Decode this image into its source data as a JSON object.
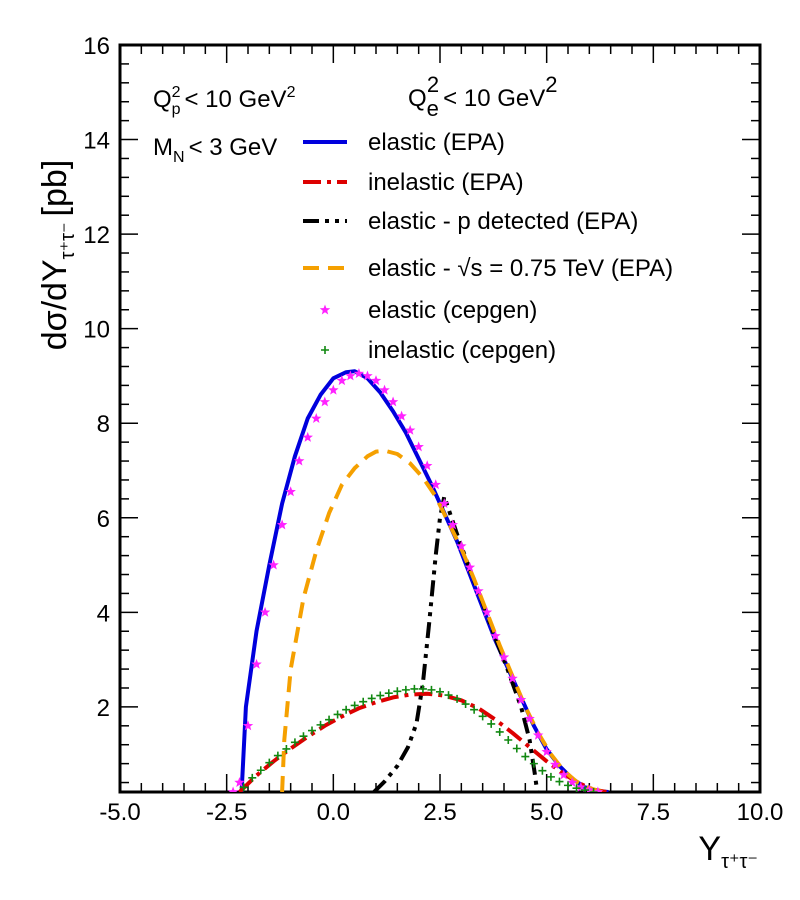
{
  "chart_data": {
    "type": "line",
    "title": "",
    "xlabel": "Y",
    "xlabel_subscript": "τ⁺τ⁻",
    "ylabel": "dσ/dY",
    "ylabel_subscript": "τ⁺τ⁻",
    "ylabel_unit": "[pb]",
    "xlim": [
      -5.0,
      10.0
    ],
    "ylim": [
      0.2,
      16
    ],
    "x_ticks": [
      -5.0,
      -2.5,
      0.0,
      2.5,
      5.0,
      7.5,
      10.0
    ],
    "x_tick_labels": [
      "-5.0",
      "-2.5",
      "0.0",
      "2.5",
      "5.0",
      "7.5",
      "10.0"
    ],
    "y_ticks": [
      2,
      4,
      6,
      8,
      10,
      12,
      14,
      16
    ],
    "y_tick_labels": [
      "2",
      "4",
      "6",
      "8",
      "10",
      "12",
      "14",
      "16"
    ],
    "grid": false,
    "legend_position": "top-right",
    "annotations": {
      "qe_cut": {
        "base": "Q",
        "sub": "e",
        "sup": "2",
        "rest": "<  10 GeV",
        "unit_sup": "2"
      },
      "qp_cut": {
        "base": "Q",
        "sub": "p",
        "sup": "2",
        "rest": "< 10 GeV",
        "unit_sup": "2"
      },
      "mn_cut": {
        "base": "M",
        "sub": "N",
        "rest": "< 3 GeV"
      }
    },
    "series": [
      {
        "name": "elastic (EPA)",
        "style": "solid",
        "color": "#0000dd",
        "x": [
          -2.15,
          -2.05,
          -1.8,
          -1.5,
          -1.2,
          -0.9,
          -0.6,
          -0.3,
          0.0,
          0.3,
          0.5,
          0.8,
          1.1,
          1.4,
          1.7,
          2.0,
          2.3,
          2.6,
          2.9,
          3.2,
          3.5,
          3.8,
          4.1,
          4.4,
          4.7,
          5.0,
          5.3,
          5.6,
          5.9,
          6.2,
          6.45
        ],
        "y": [
          0.2,
          2.0,
          3.6,
          5.0,
          6.3,
          7.3,
          8.1,
          8.6,
          8.95,
          9.08,
          9.1,
          8.95,
          8.65,
          8.25,
          7.8,
          7.25,
          6.7,
          6.1,
          5.5,
          4.8,
          4.1,
          3.4,
          2.8,
          2.2,
          1.6,
          1.1,
          0.75,
          0.48,
          0.3,
          0.22,
          0.2
        ]
      },
      {
        "name": "inelastic (EPA)",
        "style": "dashdot",
        "color": "#dd0000",
        "x": [
          -2.2,
          -1.8,
          -1.4,
          -1.0,
          -0.6,
          -0.2,
          0.2,
          0.6,
          1.0,
          1.4,
          1.8,
          2.2,
          2.6,
          3.0,
          3.4,
          3.8,
          4.2,
          4.6,
          5.0,
          5.4,
          5.8,
          6.1,
          6.4
        ],
        "y": [
          0.2,
          0.55,
          0.85,
          1.12,
          1.37,
          1.6,
          1.8,
          1.97,
          2.1,
          2.2,
          2.26,
          2.28,
          2.24,
          2.14,
          1.97,
          1.73,
          1.45,
          1.15,
          0.85,
          0.58,
          0.37,
          0.25,
          0.2
        ]
      },
      {
        "name": "elastic - p detected (EPA)",
        "style": "dashdotdot",
        "color": "#000000",
        "x": [
          0.95,
          1.2,
          1.5,
          1.75,
          1.95,
          2.1,
          2.25,
          2.4,
          2.5,
          2.6,
          2.9,
          3.2,
          3.5,
          3.8,
          4.1,
          4.4,
          4.6,
          4.72,
          4.78
        ],
        "y": [
          0.2,
          0.42,
          0.75,
          1.15,
          1.65,
          2.5,
          3.8,
          5.2,
          6.0,
          6.45,
          5.65,
          4.9,
          4.2,
          3.45,
          2.75,
          2.0,
          1.3,
          0.6,
          0.2
        ]
      },
      {
        "name": "elastic - √s = 0.75 TeV (EPA)",
        "style": "dashed",
        "color": "#f5a000",
        "x": [
          -1.2,
          -1.15,
          -1.0,
          -0.7,
          -0.4,
          -0.1,
          0.2,
          0.5,
          0.8,
          1.0,
          1.2,
          1.5,
          1.8,
          2.1,
          2.4,
          2.7,
          3.0,
          3.3,
          3.6,
          3.9,
          4.2,
          4.5,
          4.8,
          5.1,
          5.4,
          5.7,
          6.0,
          6.3
        ],
        "y": [
          0.2,
          1.3,
          2.8,
          4.3,
          5.3,
          6.1,
          6.7,
          7.05,
          7.3,
          7.4,
          7.42,
          7.35,
          7.15,
          6.85,
          6.45,
          5.9,
          5.35,
          4.7,
          4.0,
          3.3,
          2.65,
          2.0,
          1.45,
          1.0,
          0.65,
          0.42,
          0.28,
          0.2
        ]
      },
      {
        "name": "elastic (cepgen)",
        "style": "markers-star",
        "color": "#ff22ff",
        "x": [
          -2.35,
          -2.2,
          -2.0,
          -1.8,
          -1.6,
          -1.4,
          -1.2,
          -1.0,
          -0.8,
          -0.6,
          -0.4,
          -0.2,
          0.0,
          0.2,
          0.4,
          0.6,
          0.8,
          1.0,
          1.2,
          1.4,
          1.6,
          1.8,
          2.0,
          2.2,
          2.4,
          2.6,
          2.8,
          3.0,
          3.2,
          3.4,
          3.6,
          3.8,
          4.0,
          4.2,
          4.4,
          4.6,
          4.8,
          5.0,
          5.2,
          5.4,
          5.6,
          5.8,
          6.0,
          6.2
        ],
        "y": [
          0.2,
          0.4,
          1.6,
          2.9,
          4.0,
          5.0,
          5.85,
          6.55,
          7.2,
          7.7,
          8.1,
          8.45,
          8.7,
          8.9,
          9.0,
          9.05,
          9.0,
          8.9,
          8.7,
          8.45,
          8.15,
          7.85,
          7.5,
          7.1,
          6.7,
          6.3,
          5.85,
          5.4,
          4.95,
          4.45,
          4.0,
          3.5,
          3.05,
          2.6,
          2.15,
          1.75,
          1.4,
          1.05,
          0.78,
          0.56,
          0.4,
          0.3,
          0.24,
          0.2
        ]
      },
      {
        "name": "inelastic (cepgen)",
        "style": "markers-plus",
        "color": "#118811",
        "x": [
          -2.1,
          -1.9,
          -1.7,
          -1.5,
          -1.3,
          -1.1,
          -0.9,
          -0.7,
          -0.5,
          -0.3,
          -0.1,
          0.1,
          0.3,
          0.5,
          0.7,
          0.9,
          1.1,
          1.3,
          1.5,
          1.7,
          1.9,
          2.1,
          2.3,
          2.5,
          2.7,
          2.9,
          3.1,
          3.3,
          3.5,
          3.7,
          3.9,
          4.1,
          4.3,
          4.5,
          4.7,
          4.9,
          5.1,
          5.3,
          5.5,
          5.7,
          5.9,
          6.1
        ],
        "y": [
          0.3,
          0.5,
          0.66,
          0.82,
          0.97,
          1.11,
          1.25,
          1.38,
          1.5,
          1.62,
          1.73,
          1.84,
          1.94,
          2.03,
          2.11,
          2.18,
          2.24,
          2.29,
          2.33,
          2.36,
          2.38,
          2.38,
          2.36,
          2.32,
          2.25,
          2.17,
          2.06,
          1.94,
          1.8,
          1.64,
          1.47,
          1.3,
          1.12,
          0.95,
          0.8,
          0.65,
          0.52,
          0.42,
          0.34,
          0.28,
          0.24,
          0.2
        ]
      }
    ]
  }
}
